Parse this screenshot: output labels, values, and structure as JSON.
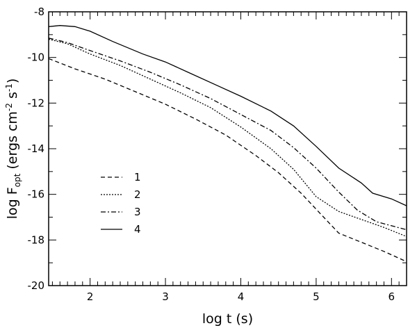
{
  "chart_data": {
    "type": "line",
    "xlabel": "log t (s)",
    "ylabel": {
      "pre": "log F",
      "sub": "opt",
      "mid1": " (ergs cm",
      "sup1": "-2",
      "mid2": " s",
      "sup2": "-1",
      "post": ")"
    },
    "xlim": [
      1.45,
      6.2
    ],
    "ylim": [
      -20,
      -8
    ],
    "x_ticks": [
      2,
      3,
      4,
      5,
      6
    ],
    "x_tick_labels": [
      "2",
      "3",
      "4",
      "5",
      "6"
    ],
    "y_ticks": [
      -20,
      -18,
      -16,
      -14,
      -12,
      -10,
      -8
    ],
    "y_tick_labels": [
      "-20",
      "-18",
      "-16",
      "-14",
      "-12",
      "-10",
      "-8"
    ],
    "grid": false,
    "legend_position": "left-center",
    "series": [
      {
        "name": "1",
        "style": "dashed",
        "x": [
          1.45,
          1.8,
          2.2,
          2.6,
          3.0,
          3.4,
          3.8,
          4.2,
          4.5,
          4.8,
          5.1,
          5.3,
          5.6,
          5.9,
          6.2
        ],
        "y": [
          -10.05,
          -10.5,
          -10.95,
          -11.5,
          -12.05,
          -12.7,
          -13.4,
          -14.3,
          -15.05,
          -15.95,
          -17.0,
          -17.7,
          -18.1,
          -18.5,
          -18.95
        ]
      },
      {
        "name": "2",
        "style": "dotted",
        "x": [
          1.45,
          1.7,
          2.0,
          2.4,
          2.8,
          3.2,
          3.6,
          4.0,
          4.4,
          4.7,
          5.0,
          5.3,
          5.6,
          5.9,
          6.2
        ],
        "y": [
          -9.2,
          -9.4,
          -9.85,
          -10.35,
          -10.95,
          -11.55,
          -12.2,
          -13.05,
          -14.0,
          -14.9,
          -16.1,
          -16.75,
          -17.1,
          -17.45,
          -17.85
        ]
      },
      {
        "name": "3",
        "style": "dashdot",
        "x": [
          1.45,
          1.7,
          2.0,
          2.4,
          2.8,
          3.2,
          3.6,
          4.0,
          4.4,
          4.7,
          5.0,
          5.3,
          5.55,
          5.8,
          6.2
        ],
        "y": [
          -9.15,
          -9.35,
          -9.7,
          -10.15,
          -10.65,
          -11.2,
          -11.8,
          -12.5,
          -13.2,
          -13.95,
          -14.85,
          -15.9,
          -16.7,
          -17.2,
          -17.55
        ]
      },
      {
        "name": "4",
        "style": "solid",
        "x": [
          1.45,
          1.6,
          1.8,
          2.0,
          2.3,
          2.7,
          3.0,
          3.3,
          3.7,
          4.0,
          4.4,
          4.7,
          5.0,
          5.3,
          5.6,
          5.75,
          6.0,
          6.2
        ],
        "y": [
          -8.65,
          -8.6,
          -8.65,
          -8.85,
          -9.3,
          -9.85,
          -10.2,
          -10.65,
          -11.25,
          -11.7,
          -12.35,
          -13.0,
          -13.9,
          -14.85,
          -15.5,
          -15.95,
          -16.2,
          -16.5
        ]
      }
    ]
  }
}
